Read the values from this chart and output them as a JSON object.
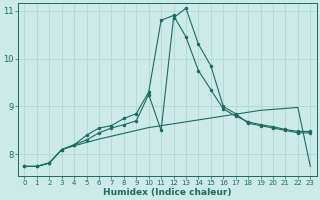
{
  "xlabel": "Humidex (Indice chaleur)",
  "background_color": "#cceae8",
  "grid_color": "#b0d8d4",
  "line_color": "#1a6b60",
  "xlim": [
    -0.5,
    23.5
  ],
  "ylim": [
    7.55,
    11.15
  ],
  "yticks": [
    8,
    9,
    10,
    11
  ],
  "xticks": [
    0,
    1,
    2,
    3,
    4,
    5,
    6,
    7,
    8,
    9,
    10,
    11,
    12,
    13,
    14,
    15,
    16,
    17,
    18,
    19,
    20,
    21,
    22,
    23
  ],
  "series1_y": [
    7.75,
    7.75,
    7.82,
    8.1,
    8.18,
    8.25,
    8.32,
    8.38,
    8.44,
    8.5,
    8.56,
    8.6,
    8.64,
    8.68,
    8.72,
    8.76,
    8.8,
    8.84,
    8.88,
    8.92,
    8.94,
    8.96,
    8.98,
    7.75
  ],
  "series2_y": [
    7.75,
    7.75,
    7.82,
    8.1,
    8.2,
    8.3,
    8.45,
    8.55,
    8.62,
    8.7,
    9.25,
    8.5,
    10.85,
    11.05,
    10.3,
    9.85,
    9.0,
    8.85,
    8.65,
    8.6,
    8.55,
    8.5,
    8.45,
    8.45
  ],
  "series3_y": [
    7.75,
    7.75,
    7.82,
    8.1,
    8.2,
    8.4,
    8.55,
    8.6,
    8.75,
    8.85,
    9.3,
    10.8,
    10.9,
    10.45,
    9.75,
    9.35,
    8.95,
    8.8,
    8.68,
    8.62,
    8.58,
    8.52,
    8.48,
    8.48
  ]
}
